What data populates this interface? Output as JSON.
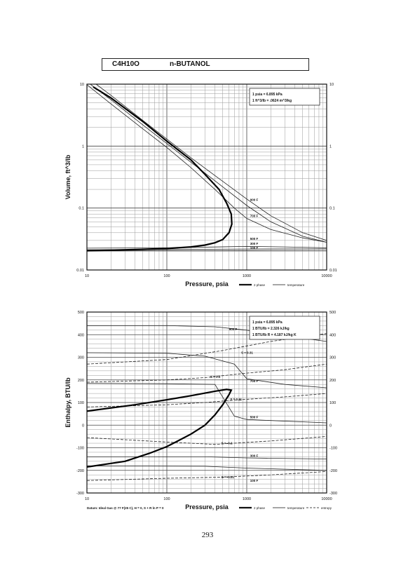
{
  "header": {
    "formula": "C4H10O",
    "name": "n-BUTANOL"
  },
  "page_number": "293",
  "chart_data": [
    {
      "type": "line",
      "log_x": true,
      "log_y": true,
      "xlabel": "Pressure,  psia",
      "ylabel": "Volume, ft^3/lb",
      "xlim": [
        10,
        10000
      ],
      "ylim": [
        0.01,
        10
      ],
      "grid": true,
      "x_ticks": [
        10,
        100,
        1000,
        10000
      ],
      "x_tick_labels": [
        "10",
        "100",
        "1000",
        "10000"
      ],
      "y_ticks": [
        0.01,
        0.1,
        1,
        10
      ],
      "y_tick_labels": [
        "0.01",
        "0.1",
        "1",
        "10"
      ],
      "conversion_note": [
        "1 psia  =  6.895 kPa",
        "1 ft^3/lb  =  .0624 m^3/kg"
      ],
      "legend": [
        "2 phase",
        "temperature"
      ],
      "saturation": {
        "name": "2 phase",
        "points": [
          [
            10,
            0.0205
          ],
          [
            50,
            0.0215
          ],
          [
            100,
            0.0222
          ],
          [
            200,
            0.0236
          ],
          [
            300,
            0.0252
          ],
          [
            400,
            0.0275
          ],
          [
            500,
            0.031
          ],
          [
            600,
            0.04
          ],
          [
            650,
            0.055
          ],
          [
            640,
            0.08
          ],
          [
            560,
            0.12
          ],
          [
            450,
            0.2
          ],
          [
            300,
            0.35
          ],
          [
            200,
            0.6
          ],
          [
            100,
            1.2
          ],
          [
            50,
            2.5
          ],
          [
            20,
            6
          ],
          [
            12,
            9
          ]
        ]
      },
      "isotherms": [
        {
          "label": "100 F",
          "points": [
            [
              10,
              0.0203
            ],
            [
              100,
              0.0205
            ],
            [
              1000,
              0.0206
            ],
            [
              10000,
              0.0207
            ]
          ]
        },
        {
          "label": "300 F",
          "points": [
            [
              10,
              0.0212
            ],
            [
              100,
              0.0214
            ],
            [
              1000,
              0.0218
            ],
            [
              10000,
              0.0219
            ]
          ]
        },
        {
          "label": "500 F",
          "points": [
            [
              10,
              0.0225
            ],
            [
              100,
              0.0228
            ],
            [
              400,
              0.0235
            ],
            [
              1000,
              0.024
            ],
            [
              3000,
              0.0236
            ],
            [
              10000,
              0.0228
            ]
          ]
        },
        {
          "label": "700 F",
          "points": [
            [
              10,
              9.8
            ],
            [
              20,
              4.8
            ],
            [
              50,
              1.9
            ],
            [
              100,
              0.95
            ],
            [
              200,
              0.45
            ],
            [
              400,
              0.2
            ],
            [
              700,
              0.1
            ],
            [
              1000,
              0.068
            ],
            [
              2000,
              0.045
            ],
            [
              5000,
              0.033
            ],
            [
              10000,
              0.028
            ]
          ]
        },
        {
          "label": "900 F",
          "points": [
            [
              11,
              10
            ],
            [
              20,
              5.6
            ],
            [
              50,
              2.2
            ],
            [
              100,
              1.1
            ],
            [
              200,
              0.55
            ],
            [
              500,
              0.22
            ],
            [
              1000,
              0.11
            ],
            [
              2000,
              0.06
            ],
            [
              5000,
              0.035
            ],
            [
              10000,
              0.028
            ]
          ]
        },
        {
          "label": "",
          "points": [
            [
              13,
              10
            ],
            [
              20,
              6.6
            ],
            [
              50,
              2.6
            ],
            [
              100,
              1.3
            ],
            [
              200,
              0.65
            ],
            [
              500,
              0.27
            ],
            [
              1000,
              0.14
            ],
            [
              2000,
              0.075
            ],
            [
              5000,
              0.04
            ],
            [
              10000,
              0.03
            ]
          ]
        }
      ],
      "isotherm_labels": [
        {
          "text": "900 F",
          "x": 1100,
          "y": 0.13
        },
        {
          "text": "700 F",
          "x": 1100,
          "y": 0.072
        },
        {
          "text": "500 F",
          "x": 1100,
          "y": 0.0305
        },
        {
          "text": "300 F",
          "x": 1100,
          "y": 0.0255
        },
        {
          "text": "100 F",
          "x": 1100,
          "y": 0.0218
        }
      ]
    },
    {
      "type": "line",
      "log_x": true,
      "log_y": false,
      "xlabel": "Pressure,  psia",
      "ylabel": "Enthalpy, BTU/lb",
      "xlim": [
        10,
        10000
      ],
      "ylim": [
        -300,
        500
      ],
      "grid": true,
      "x_ticks": [
        10,
        100,
        1000,
        10000
      ],
      "x_tick_labels": [
        "10",
        "100",
        "1000",
        "10000"
      ],
      "y_ticks": [
        -300,
        -200,
        -100,
        0,
        100,
        200,
        300,
        400,
        500
      ],
      "y_tick_labels": [
        "-300",
        "-200",
        "-100",
        "0",
        "100",
        "200",
        "300",
        "400",
        "500"
      ],
      "conversion_note": [
        "1 psia  =  6.895 kPa",
        "1 BTU/lb  =  2.326 kJ/kg",
        "1 BTU/lb R  =  4.187 kJ/kg K"
      ],
      "datum_note": "Datum: Ideal Gas @ 77 F(25 C), H = 0, S + R ln P = 0",
      "legend": [
        "2 phase",
        "temperature",
        "entropy"
      ],
      "saturation": {
        "name": "2 phase",
        "points": [
          [
            10,
            -185
          ],
          [
            30,
            -160
          ],
          [
            60,
            -125
          ],
          [
            100,
            -95
          ],
          [
            200,
            -40
          ],
          [
            300,
            0
          ],
          [
            400,
            45
          ],
          [
            500,
            90
          ],
          [
            600,
            135
          ],
          [
            640,
            155
          ],
          [
            560,
            158
          ],
          [
            400,
            150
          ],
          [
            200,
            130
          ],
          [
            100,
            112
          ],
          [
            40,
            90
          ],
          [
            10,
            62
          ]
        ]
      },
      "isotherms": [
        {
          "label": "900 F",
          "points": [
            [
              10,
              440
            ],
            [
              100,
              440
            ],
            [
              400,
              435
            ],
            [
              1000,
              420
            ],
            [
              3000,
              395
            ],
            [
              10000,
              370
            ]
          ]
        },
        {
          "label": "700 F",
          "points": [
            [
              10,
              320
            ],
            [
              100,
              318
            ],
            [
              300,
              305
            ],
            [
              700,
              270
            ],
            [
              1000,
              205
            ],
            [
              3000,
              180
            ],
            [
              10000,
              165
            ]
          ]
        },
        {
          "label": "500 F",
          "points": [
            [
              10,
              185
            ],
            [
              100,
              183
            ],
            [
              400,
              180
            ],
            [
              700,
              40
            ],
            [
              1000,
              25
            ],
            [
              10000,
              10
            ]
          ]
        },
        {
          "label": "300 F",
          "points": [
            [
              10,
              -140
            ],
            [
              300,
              -140
            ],
            [
              1000,
              -145
            ],
            [
              10000,
              -150
            ]
          ]
        },
        {
          "label": "100 F",
          "points": [
            [
              10,
              -180
            ],
            [
              300,
              -182
            ],
            [
              1000,
              -190
            ],
            [
              10000,
              -200
            ]
          ]
        }
      ],
      "entropy_lines": [
        {
          "label": "S = 0.31",
          "points": [
            [
              10,
              270
            ],
            [
              100,
              290
            ],
            [
              500,
              330
            ],
            [
              2000,
              370
            ],
            [
              10000,
              405
            ]
          ]
        },
        {
          "label": "S = 0.2",
          "points": [
            [
              10,
              190
            ],
            [
              100,
              200
            ],
            [
              300,
              210
            ],
            [
              1000,
              230
            ],
            [
              3000,
              245
            ],
            [
              10000,
              270
            ]
          ]
        },
        {
          "label": "S = 0.11",
          "points": [
            [
              10,
              80
            ],
            [
              100,
              90
            ],
            [
              300,
              100
            ],
            [
              650,
              110
            ],
            [
              3000,
              125
            ],
            [
              10000,
              140
            ]
          ]
        },
        {
          "label": "S = -0.1",
          "points": [
            [
              10,
              -55
            ],
            [
              100,
              -75
            ],
            [
              400,
              -85
            ],
            [
              2000,
              -70
            ],
            [
              10000,
              -50
            ]
          ]
        },
        {
          "label": "S = -0.31",
          "points": [
            [
              10,
              -245
            ],
            [
              100,
              -235
            ],
            [
              500,
              -230
            ],
            [
              2000,
              -220
            ],
            [
              10000,
              -205
            ]
          ]
        }
      ],
      "isotherm_labels": [
        {
          "text": "900 F",
          "x": 600,
          "y": 420
        },
        {
          "text": "700 F",
          "x": 1100,
          "y": 190
        },
        {
          "text": "500 F",
          "x": 1100,
          "y": 30
        },
        {
          "text": "300 F",
          "x": 1100,
          "y": -140
        },
        {
          "text": "100 F",
          "x": 1100,
          "y": -250
        }
      ],
      "entropy_labels": [
        {
          "text": "S = 0.31",
          "x": 850,
          "y": 315
        },
        {
          "text": "S = 0.2",
          "x": 350,
          "y": 208
        },
        {
          "text": "S = 0.11",
          "x": 620,
          "y": 110
        },
        {
          "text": "S = -0.1",
          "x": 480,
          "y": -85
        },
        {
          "text": "S = -0.31",
          "x": 480,
          "y": -235
        }
      ]
    }
  ]
}
